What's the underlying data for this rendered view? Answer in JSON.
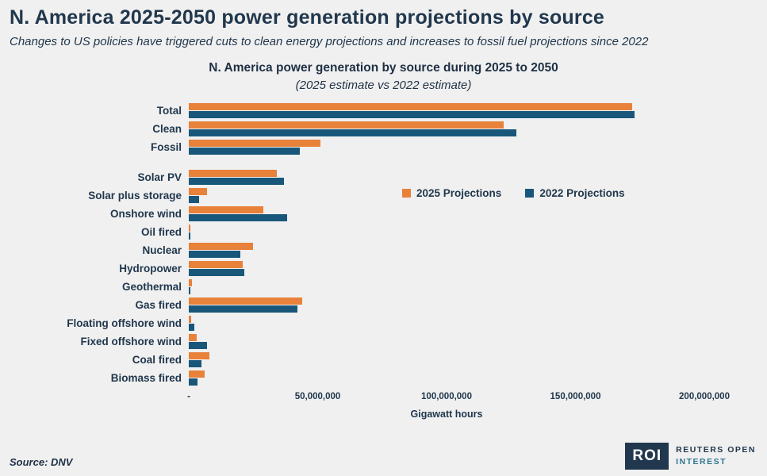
{
  "page": {
    "title": "N. America 2025-2050 power generation projections by source",
    "subtitle": "Changes to US policies have triggered cuts to clean energy projections and increases to fossil fuel projections since 2022",
    "source": "Source: DNV"
  },
  "branding": {
    "logo_text": "ROI",
    "org_line1": "REUTERS OPEN",
    "org_line2": "INTEREST"
  },
  "colors": {
    "background": "#F0F0F0",
    "title_text": "#21374D",
    "series_2025": "#E8813A",
    "series_2022": "#19577A"
  },
  "chart_data": {
    "type": "bar",
    "orientation": "horizontal",
    "title": "N. America power generation by source during 2025 to 2050",
    "subtitle": "(2025 estimate vs 2022 estimate)",
    "xlabel": "Gigawatt hours",
    "x_max": 200000000,
    "x_ticks": [
      "-",
      "50,000,000",
      "100,000,000",
      "150,000,000",
      "200,000,000"
    ],
    "grid": false,
    "legend_position": "inside-right",
    "gap_after_category": "Fossil",
    "categories": [
      "Total",
      "Clean",
      "Fossil",
      "Solar PV",
      "Solar plus storage",
      "Onshore wind",
      "Oil fired",
      "Nuclear",
      "Hydropower",
      "Geothermal",
      "Gas fired",
      "Floating offshore wind",
      "Fixed offshore wind",
      "Coal fired",
      "Biomass fired"
    ],
    "series": [
      {
        "name": "2025 Projections",
        "color": "#E8813A",
        "values": [
          172000000,
          122000000,
          51000000,
          34000000,
          7000000,
          29000000,
          500000,
          25000000,
          21000000,
          1200000,
          44000000,
          1000000,
          3000000,
          8000000,
          6000000
        ]
      },
      {
        "name": "2022 Projections",
        "color": "#19577A",
        "values": [
          173000000,
          127000000,
          43000000,
          37000000,
          4000000,
          38000000,
          500000,
          20000000,
          21500000,
          600000,
          42000000,
          2000000,
          7000000,
          5000000,
          3500000
        ]
      }
    ]
  }
}
